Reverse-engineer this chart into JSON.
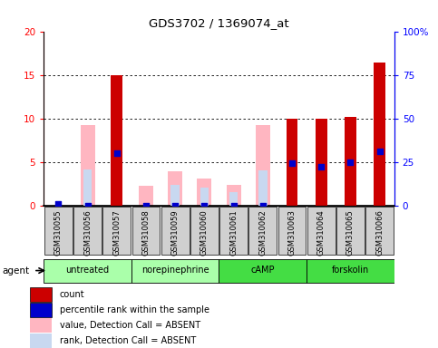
{
  "title": "GDS3702 / 1369074_at",
  "samples": [
    "GSM310055",
    "GSM310056",
    "GSM310057",
    "GSM310058",
    "GSM310059",
    "GSM310060",
    "GSM310061",
    "GSM310062",
    "GSM310063",
    "GSM310064",
    "GSM310065",
    "GSM310066"
  ],
  "group_defs": [
    {
      "label": "untreated",
      "start": 0,
      "end": 2,
      "color": "#aaffaa"
    },
    {
      "label": "norepinephrine",
      "start": 3,
      "end": 5,
      "color": "#aaffaa"
    },
    {
      "label": "cAMP",
      "start": 6,
      "end": 8,
      "color": "#44dd44"
    },
    {
      "label": "forskolin",
      "start": 9,
      "end": 11,
      "color": "#44dd44"
    }
  ],
  "count_values": [
    0.0,
    0.0,
    15.0,
    0.0,
    0.0,
    0.0,
    0.0,
    0.0,
    10.0,
    10.0,
    10.2,
    16.4
  ],
  "percentile_rank": [
    1.0,
    0.0,
    30.0,
    0.0,
    0.0,
    0.0,
    0.0,
    0.0,
    24.0,
    22.0,
    25.0,
    31.0
  ],
  "absent_value": [
    0.0,
    9.2,
    0.0,
    2.2,
    3.9,
    3.1,
    2.3,
    9.2,
    0.0,
    0.0,
    0.0,
    0.0
  ],
  "absent_rank": [
    0.0,
    4.1,
    0.0,
    0.0,
    2.3,
    2.0,
    1.5,
    4.0,
    0.0,
    0.0,
    0.0,
    0.0
  ],
  "ylim_left": [
    0,
    20
  ],
  "ylim_right": [
    0,
    100
  ],
  "yticks_left": [
    0,
    5,
    10,
    15,
    20
  ],
  "yticks_right": [
    0,
    25,
    50,
    75,
    100
  ],
  "count_color": "#CC0000",
  "percentile_color": "#0000CC",
  "absent_value_color": "#FFB6C1",
  "absent_rank_color": "#C8D8F0",
  "sample_box_color": "#D0D0D0",
  "legend_items": [
    {
      "label": "count",
      "color": "#CC0000",
      "marker": "square"
    },
    {
      "label": "percentile rank within the sample",
      "color": "#0000CC",
      "marker": "square"
    },
    {
      "label": "value, Detection Call = ABSENT",
      "color": "#FFB6C1",
      "marker": "square"
    },
    {
      "label": "rank, Detection Call = ABSENT",
      "color": "#C8D8F0",
      "marker": "square"
    }
  ]
}
